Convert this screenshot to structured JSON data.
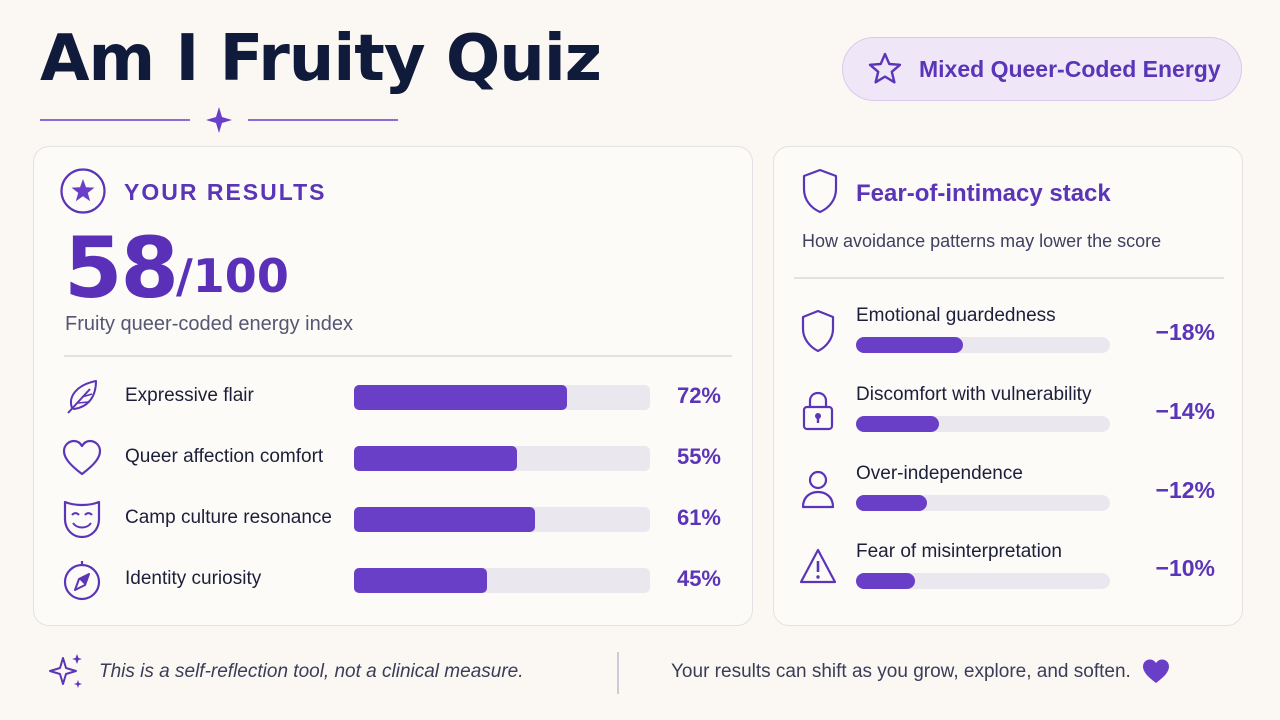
{
  "header": {
    "title": "Am I Fruity Quiz",
    "badge_label": "Mixed Queer-Coded Energy"
  },
  "results": {
    "heading": "YOUR RESULTS",
    "score": "58",
    "score_total": "/100",
    "caption": "Fruity queer-coded energy index",
    "metrics": [
      {
        "label": "Expressive flair",
        "value": 72,
        "value_text": "72%",
        "icon": "feather-icon"
      },
      {
        "label": "Queer affection comfort",
        "value": 55,
        "value_text": "55%",
        "icon": "heart-icon"
      },
      {
        "label": "Camp culture resonance",
        "value": 61,
        "value_text": "61%",
        "icon": "theater-mask-icon"
      },
      {
        "label": "Identity curiosity",
        "value": 45,
        "value_text": "45%",
        "icon": "compass-icon"
      }
    ]
  },
  "stack": {
    "title": "Fear-of-intimacy stack",
    "subtitle": "How avoidance patterns may lower the score",
    "factors": [
      {
        "label": "Emotional guardedness",
        "value": 18,
        "value_text": "−18%",
        "icon": "shield-icon"
      },
      {
        "label": "Discomfort with vulnerability",
        "value": 14,
        "value_text": "−14%",
        "icon": "lock-icon"
      },
      {
        "label": "Over-independence",
        "value": 12,
        "value_text": "−12%",
        "icon": "person-icon"
      },
      {
        "label": "Fear of misinterpretation",
        "value": 10,
        "value_text": "−10%",
        "icon": "warning-icon"
      }
    ]
  },
  "footer": {
    "disclaimer": "This is a self-reflection tool, not a clinical measure.",
    "growth_note": "Your results can shift as you grow, explore, and soften."
  },
  "colors": {
    "accent": "#5b35b8",
    "bar_fill": "#6a3fc7",
    "bar_track": "#ebe7ef",
    "title": "#101a3a",
    "background": "#fbf8f3"
  }
}
